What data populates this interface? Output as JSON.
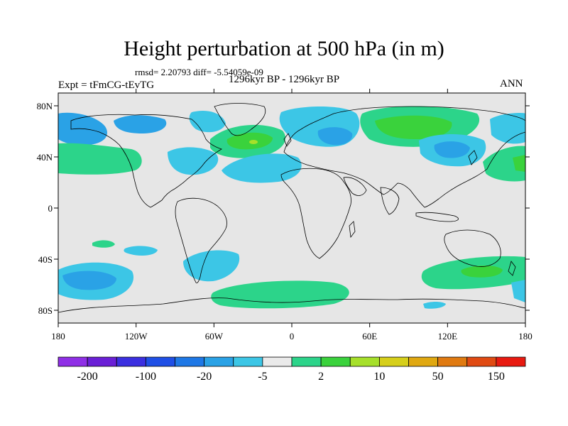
{
  "title": "Height perturbation at 500 hPa (in m)",
  "rmsd_text": "rmsd= 2.20793 diff= -5.54059e-09",
  "period": "1296kyr BP - 1296kyr BP",
  "experiment": "Expt = tFmCG-tEvTG",
  "season": "ANN",
  "map": {
    "projection": "cylindrical equidistant",
    "lon_range": [
      -180,
      180
    ],
    "lat_range": [
      -90,
      90
    ],
    "background_color": "#e6e6e6",
    "coastline_color": "#000000",
    "x_ticks": [
      "180",
      "120W",
      "60W",
      "0",
      "60E",
      "120E",
      "180"
    ],
    "y_ticks": [
      "80N",
      "40N",
      "0",
      "40S",
      "80S"
    ]
  },
  "colorbar": {
    "colors": [
      "#8f2fe6",
      "#6a1fd6",
      "#3b2fe0",
      "#1f4fe6",
      "#1e78e6",
      "#2aa2e6",
      "#3cc6e6",
      "#eaeaea",
      "#2cd48a",
      "#3ad23c",
      "#a6e02a",
      "#d6cf1a",
      "#e0a810",
      "#e07a10",
      "#e04a12",
      "#e81a10"
    ],
    "labels": [
      "-200",
      "-100",
      "-20",
      "-5",
      "2",
      "10",
      "50",
      "150"
    ]
  }
}
